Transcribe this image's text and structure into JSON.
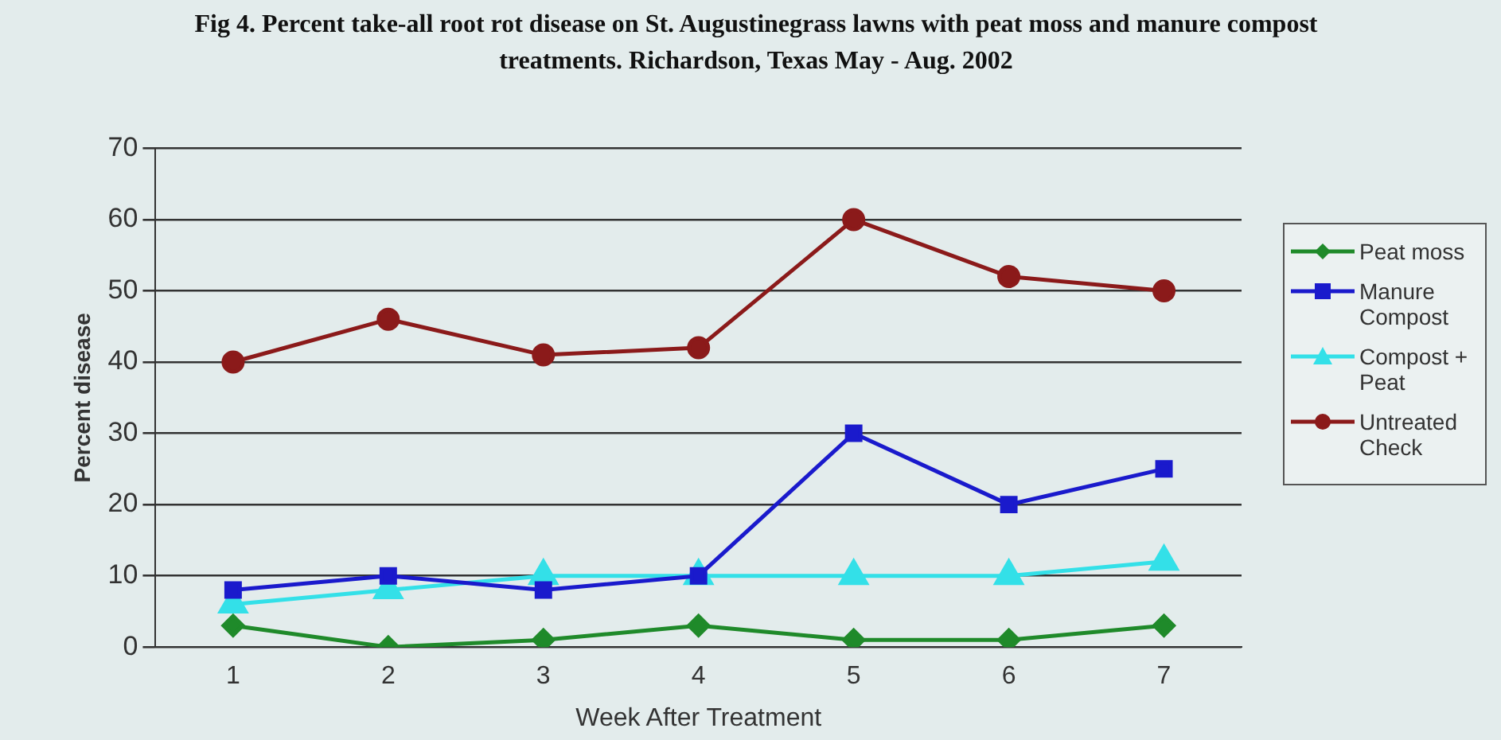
{
  "chart_data": {
    "type": "line",
    "title": "Fig 4.   Percent take-all root rot disease on St. Augustinegrass lawns with peat moss and manure compost treatments. Richardson, Texas May - Aug. 2002",
    "xlabel": "Week After Treatment",
    "ylabel": "Percent disease",
    "categories": [
      "1",
      "2",
      "3",
      "4",
      "5",
      "6",
      "7"
    ],
    "series": [
      {
        "name": "Peat moss",
        "color": "#1f8a2a",
        "marker": "diamond",
        "values": [
          3,
          0,
          1,
          3,
          1,
          1,
          3
        ]
      },
      {
        "name": "Manure Compost",
        "color": "#1a1acc",
        "marker": "square",
        "values": [
          8,
          10,
          8,
          10,
          30,
          20,
          25
        ]
      },
      {
        "name": "Compost + Peat",
        "color": "#33e0e8",
        "marker": "triangle",
        "values": [
          6,
          8,
          10,
          10,
          10,
          10,
          12
        ]
      },
      {
        "name": "Untreated Check",
        "color": "#8b1a1a",
        "marker": "circle",
        "values": [
          40,
          46,
          41,
          42,
          60,
          52,
          50
        ]
      }
    ],
    "ylim": [
      0,
      70
    ],
    "yticks": [
      0,
      10,
      20,
      30,
      40,
      50,
      60,
      70
    ],
    "grid": "y",
    "legend": "right",
    "line_style": "solid"
  }
}
